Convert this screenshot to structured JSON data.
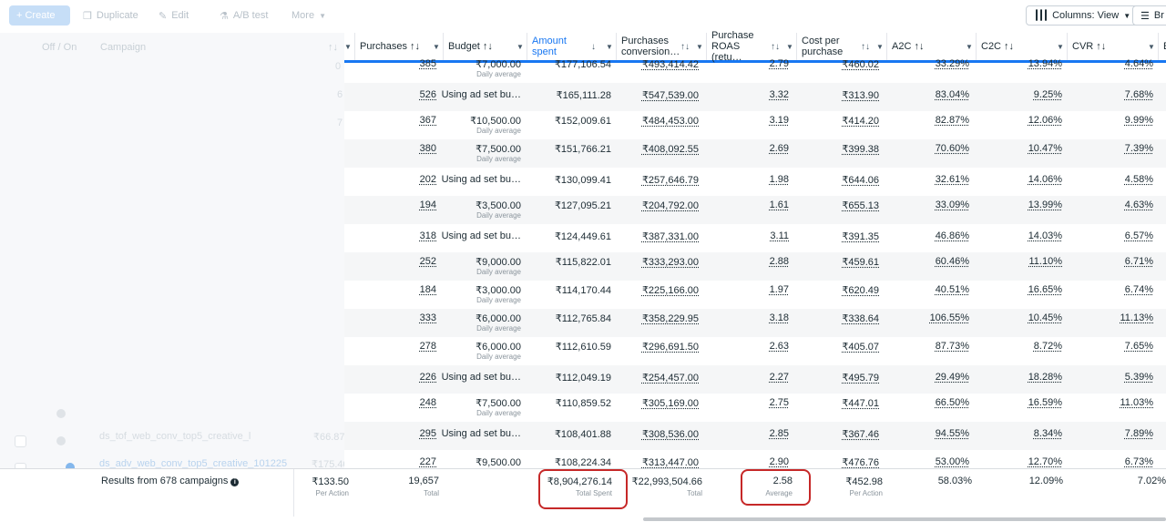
{
  "toolbar": {
    "create": "+ Create",
    "duplicate": "Duplicate",
    "edit": "Edit",
    "ab_test": "A/B test",
    "more": "More",
    "columns": "Columns: View",
    "breakdown": "Br"
  },
  "left_panel": {
    "header": {
      "off_on": "Off / On",
      "campaign": "Campaign"
    },
    "fragments": [
      "0",
      "6",
      "7"
    ],
    "rows": [
      {
        "name": "ds_tof_web_conv_top5_creative_l",
        "value": "₹66.87"
      },
      {
        "name": "ds_adv_web_conv_top5_creative_101225",
        "value": "₹175.40"
      }
    ]
  },
  "header": {
    "col0_sort": "↑↓",
    "purchases": "Purchases ↑↓",
    "budget": "Budget ↑↓",
    "amount_spent": "Amount spent",
    "amount_sort": "↓",
    "purchases_conv": "Purchases conversion…",
    "purchase_roas": "Purchase ROAS (retu…",
    "cost_per_purchase": "Cost per purchase",
    "a2c": "A2C ↑↓",
    "c2c": "C2C ↑↓",
    "cvr": "CVR ↑↓",
    "next_col": "E",
    "sort_glyph": "↑↓"
  },
  "rows": [
    {
      "purchases": "385",
      "budget": "₹7,000.00",
      "budget_sub": "Daily average",
      "spent": "₹177,106.54",
      "conv_value": "₹493,414.42",
      "roas": "2.79",
      "cpp": "₹460.02",
      "a2c": "33.29%",
      "c2c": "13.94%",
      "cvr": "4.64%"
    },
    {
      "purchases": "526",
      "budget": "Using ad set bu…",
      "budget_sub": "",
      "spent": "₹165,111.28",
      "conv_value": "₹547,539.00",
      "roas": "3.32",
      "cpp": "₹313.90",
      "a2c": "83.04%",
      "c2c": "9.25%",
      "cvr": "7.68%"
    },
    {
      "purchases": "367",
      "budget": "₹10,500.00",
      "budget_sub": "Daily average",
      "spent": "₹152,009.61",
      "conv_value": "₹484,453.00",
      "roas": "3.19",
      "cpp": "₹414.20",
      "a2c": "82.87%",
      "c2c": "12.06%",
      "cvr": "9.99%"
    },
    {
      "purchases": "380",
      "budget": "₹7,500.00",
      "budget_sub": "Daily average",
      "spent": "₹151,766.21",
      "conv_value": "₹408,092.55",
      "roas": "2.69",
      "cpp": "₹399.38",
      "a2c": "70.60%",
      "c2c": "10.47%",
      "cvr": "7.39%"
    },
    {
      "purchases": "202",
      "budget": "Using ad set bu…",
      "budget_sub": "",
      "spent": "₹130,099.41",
      "conv_value": "₹257,646.79",
      "roas": "1.98",
      "cpp": "₹644.06",
      "a2c": "32.61%",
      "c2c": "14.06%",
      "cvr": "4.58%"
    },
    {
      "purchases": "194",
      "budget": "₹3,500.00",
      "budget_sub": "Daily average",
      "spent": "₹127,095.21",
      "conv_value": "₹204,792.00",
      "roas": "1.61",
      "cpp": "₹655.13",
      "a2c": "33.09%",
      "c2c": "13.99%",
      "cvr": "4.63%"
    },
    {
      "purchases": "318",
      "budget": "Using ad set bu…",
      "budget_sub": "",
      "spent": "₹124,449.61",
      "conv_value": "₹387,331.00",
      "roas": "3.11",
      "cpp": "₹391.35",
      "a2c": "46.86%",
      "c2c": "14.03%",
      "cvr": "6.57%"
    },
    {
      "purchases": "252",
      "budget": "₹9,000.00",
      "budget_sub": "Daily average",
      "spent": "₹115,822.01",
      "conv_value": "₹333,293.00",
      "roas": "2.88",
      "cpp": "₹459.61",
      "a2c": "60.46%",
      "c2c": "11.10%",
      "cvr": "6.71%"
    },
    {
      "purchases": "184",
      "budget": "₹3,000.00",
      "budget_sub": "Daily average",
      "spent": "₹114,170.44",
      "conv_value": "₹225,166.00",
      "roas": "1.97",
      "cpp": "₹620.49",
      "a2c": "40.51%",
      "c2c": "16.65%",
      "cvr": "6.74%"
    },
    {
      "purchases": "333",
      "budget": "₹6,000.00",
      "budget_sub": "Daily average",
      "spent": "₹112,765.84",
      "conv_value": "₹358,229.95",
      "roas": "3.18",
      "cpp": "₹338.64",
      "a2c": "106.55%",
      "c2c": "10.45%",
      "cvr": "11.13%"
    },
    {
      "purchases": "278",
      "budget": "₹6,000.00",
      "budget_sub": "Daily average",
      "spent": "₹112,610.59",
      "conv_value": "₹296,691.50",
      "roas": "2.63",
      "cpp": "₹405.07",
      "a2c": "87.73%",
      "c2c": "8.72%",
      "cvr": "7.65%"
    },
    {
      "purchases": "226",
      "budget": "Using ad set bu…",
      "budget_sub": "",
      "spent": "₹112,049.19",
      "conv_value": "₹254,457.00",
      "roas": "2.27",
      "cpp": "₹495.79",
      "a2c": "29.49%",
      "c2c": "18.28%",
      "cvr": "5.39%"
    },
    {
      "purchases": "248",
      "budget": "₹7,500.00",
      "budget_sub": "Daily average",
      "spent": "₹110,859.52",
      "conv_value": "₹305,169.00",
      "roas": "2.75",
      "cpp": "₹447.01",
      "a2c": "66.50%",
      "c2c": "16.59%",
      "cvr": "11.03%"
    },
    {
      "purchases": "295",
      "budget": "Using ad set bu…",
      "budget_sub": "",
      "spent": "₹108,401.88",
      "conv_value": "₹308,536.00",
      "roas": "2.85",
      "cpp": "₹367.46",
      "a2c": "94.55%",
      "c2c": "8.34%",
      "cvr": "7.89%"
    },
    {
      "purchases": "227",
      "budget": "₹9,500.00",
      "budget_sub": "",
      "spent": "₹108,224.34",
      "conv_value": "₹313,447.00",
      "roas": "2.90",
      "cpp": "₹476.76",
      "a2c": "53.00%",
      "c2c": "12.70%",
      "cvr": "6.73%"
    }
  ],
  "footer": {
    "label": "Results from 678 campaigns",
    "cost": "₹133.50",
    "cost_sub": "Per Action",
    "purchases": "19,657",
    "purchases_sub": "Total",
    "spent": "₹8,904,276.14",
    "spent_sub": "Total Spent",
    "conv_value": "₹22,993,504.66",
    "conv_sub": "Total",
    "roas": "2.58",
    "roas_sub": "Average",
    "cpp": "₹452.98",
    "cpp_sub": "Per Action",
    "a2c": "58.03%",
    "c2c": "12.09%",
    "cvr": "7.02%"
  },
  "colors": {
    "accent": "#1877f2",
    "highlight": "#c62828"
  }
}
